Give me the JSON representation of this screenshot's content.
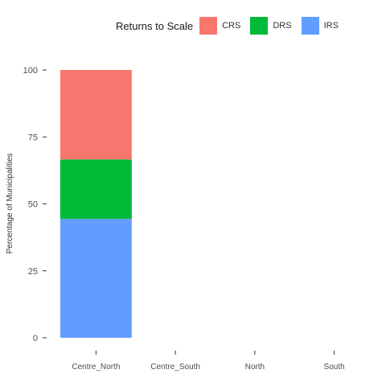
{
  "legend": {
    "title": "Returns to Scale",
    "items": [
      {
        "label": "CRS",
        "color": "#F8766D"
      },
      {
        "label": "DRS",
        "color": "#00BA38"
      },
      {
        "label": "IRS",
        "color": "#619CFF"
      }
    ]
  },
  "chart_data": {
    "type": "bar",
    "stacked": true,
    "title": "",
    "xlabel": "",
    "ylabel": "Percentage of Municipalities",
    "categories": [
      "Centre_North",
      "Centre_South",
      "North",
      "South"
    ],
    "series": [
      {
        "name": "IRS",
        "color": "#619CFF",
        "values": [
          44.4,
          0,
          0,
          0
        ]
      },
      {
        "name": "DRS",
        "color": "#00BA38",
        "values": [
          22.2,
          0,
          0,
          0
        ]
      },
      {
        "name": "CRS",
        "color": "#F8766D",
        "values": [
          33.4,
          0,
          0,
          0
        ]
      }
    ],
    "yticks": [
      0,
      25,
      50,
      75,
      100
    ],
    "ylim": [
      0,
      100
    ],
    "grid": false,
    "legend_position": "top"
  }
}
